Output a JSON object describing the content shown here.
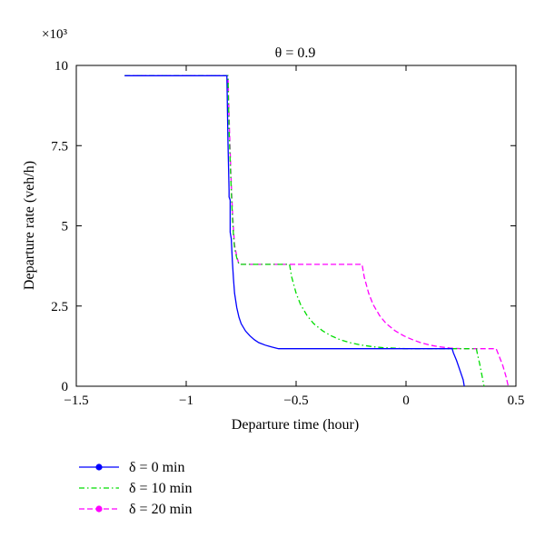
{
  "chart_data": {
    "type": "line",
    "title": "θ = 0.9",
    "xlabel": "Departure time (hour)",
    "ylabel": "Departure rate (veh/h)",
    "y_multiplier_label": "×10³",
    "xlim": [
      -1.5,
      0.5
    ],
    "ylim": [
      0,
      10
    ],
    "x_ticks": [
      -1.5,
      -1,
      -0.5,
      0,
      0.5
    ],
    "x_tick_labels": [
      "−1.5",
      "−1",
      "−0.5",
      "0",
      "0.5"
    ],
    "y_ticks": [
      0,
      2.5,
      5,
      7.5,
      10
    ],
    "y_tick_labels": [
      "0",
      "2.5",
      "5",
      "7.5",
      "10"
    ],
    "grid": false,
    "legend_position": "below",
    "series": [
      {
        "name": "δ = 0 min",
        "color": "#0000ff",
        "dash": "solid",
        "marker": "dot",
        "x": [
          -1.28,
          -0.815,
          -0.81,
          -0.805,
          -0.805,
          -0.8,
          -0.8,
          -0.795,
          -0.79,
          -0.785,
          -0.78,
          -0.77,
          -0.76,
          -0.75,
          -0.73,
          -0.71,
          -0.69,
          -0.67,
          -0.64,
          -0.61,
          -0.58,
          -0.56,
          0.21,
          0.215,
          0.23,
          0.245,
          0.26,
          0.265
        ],
        "y": [
          9.68,
          9.68,
          7.6,
          6.1,
          5.9,
          5.8,
          4.8,
          4.6,
          3.9,
          3.35,
          2.9,
          2.45,
          2.15,
          1.95,
          1.72,
          1.57,
          1.45,
          1.36,
          1.28,
          1.22,
          1.17,
          1.17,
          1.17,
          1.05,
          0.8,
          0.5,
          0.2,
          0
        ]
      },
      {
        "name": "δ = 10 min",
        "color": "#00dd00",
        "dash": "dashdot",
        "marker": "none",
        "x": [
          -1.28,
          -0.81,
          -0.805,
          -0.8,
          -0.795,
          -0.79,
          -0.785,
          -0.78,
          -0.77,
          -0.76,
          -0.53,
          -0.52,
          -0.5,
          -0.48,
          -0.45,
          -0.42,
          -0.38,
          -0.34,
          -0.3,
          -0.25,
          -0.2,
          -0.15,
          -0.1,
          0.0,
          0.1,
          0.2,
          0.32,
          0.325,
          0.335,
          0.345,
          0.355
        ],
        "y": [
          9.68,
          9.68,
          8.0,
          7.0,
          6.1,
          5.3,
          4.7,
          4.3,
          4.0,
          3.8,
          3.8,
          3.4,
          2.9,
          2.55,
          2.2,
          1.95,
          1.73,
          1.57,
          1.45,
          1.35,
          1.28,
          1.23,
          1.2,
          1.17,
          1.17,
          1.17,
          1.17,
          1.0,
          0.7,
          0.35,
          0
        ]
      },
      {
        "name": "δ = 20 min",
        "color": "#ff00ff",
        "dash": "dashed",
        "marker": "dot",
        "x": [
          -1.28,
          -0.81,
          -0.805,
          -0.8,
          -0.795,
          -0.79,
          -0.785,
          -0.78,
          -0.77,
          -0.76,
          -0.2,
          -0.19,
          -0.17,
          -0.15,
          -0.12,
          -0.09,
          -0.05,
          -0.01,
          0.03,
          0.07,
          0.11,
          0.15,
          0.2,
          0.25,
          0.3,
          0.35,
          0.41,
          0.42,
          0.44,
          0.455,
          0.465
        ],
        "y": [
          9.68,
          9.68,
          8.4,
          7.3,
          6.3,
          5.5,
          4.9,
          4.4,
          4.05,
          3.8,
          3.8,
          3.4,
          2.9,
          2.55,
          2.2,
          1.95,
          1.73,
          1.57,
          1.45,
          1.35,
          1.28,
          1.23,
          1.19,
          1.17,
          1.17,
          1.17,
          1.17,
          1.0,
          0.65,
          0.3,
          0
        ]
      }
    ]
  }
}
